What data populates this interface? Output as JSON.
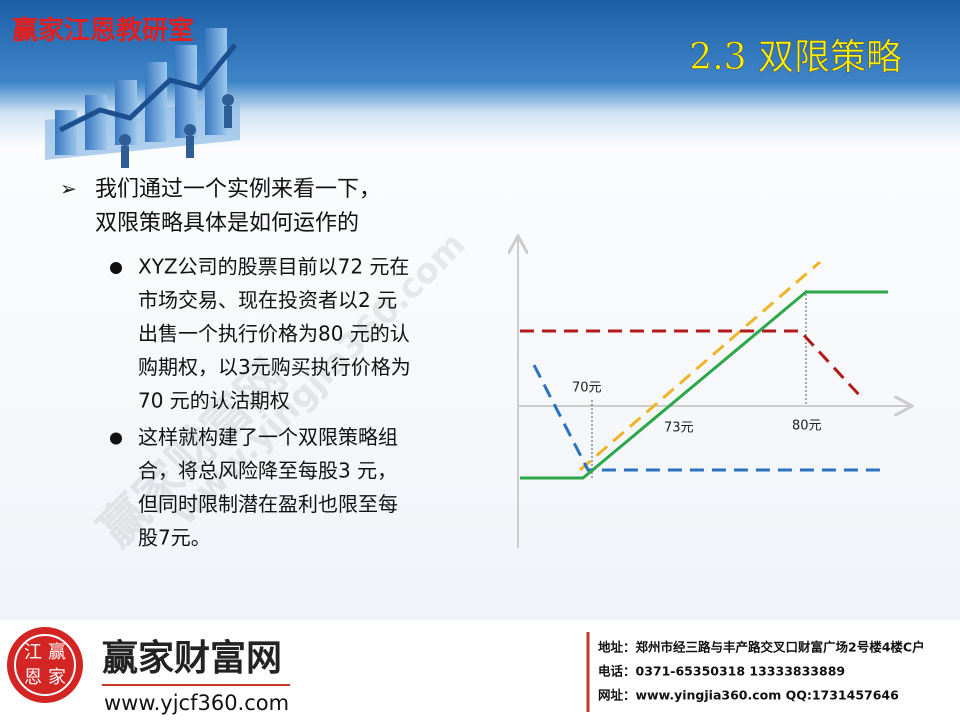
{
  "header": {
    "brand": "赢家江恩教研室",
    "title": "2.3 双限策略"
  },
  "body": {
    "main_bullet": [
      "我们通过一个实例来看一下，",
      "双限策略具体是如何运作的"
    ],
    "sub_bullets": [
      [
        "XYZ公司的股票目前以72 元在",
        "市场交易、现在投资者以2 元",
        "出售一个执行价格为80 元的认",
        "购期权，以3元购买执行价格为",
        "70 元的认沽期权"
      ],
      [
        "这样就构建了一个双限策略组",
        "合，将总风险降至每股3 元，",
        "但同时限制潜在盈利也限至每",
        "股7元。"
      ]
    ]
  },
  "diagram": {
    "labels": [
      "70元",
      "73元",
      "80元"
    ]
  },
  "watermark": [
    "赢家财富网",
    "www.yingjia360.com"
  ],
  "footer": {
    "logo": [
      "江",
      "赢",
      "恩",
      "家"
    ],
    "brand": "赢家财富网",
    "url": "www.yjcf360.com",
    "contact": [
      "地址：郑州市经三路与丰产路交叉口财富广场2号楼4楼C户",
      "电话：0371-65350318 13333833889",
      "网址：www.yingjia360.com QQ:1731457646"
    ]
  }
}
